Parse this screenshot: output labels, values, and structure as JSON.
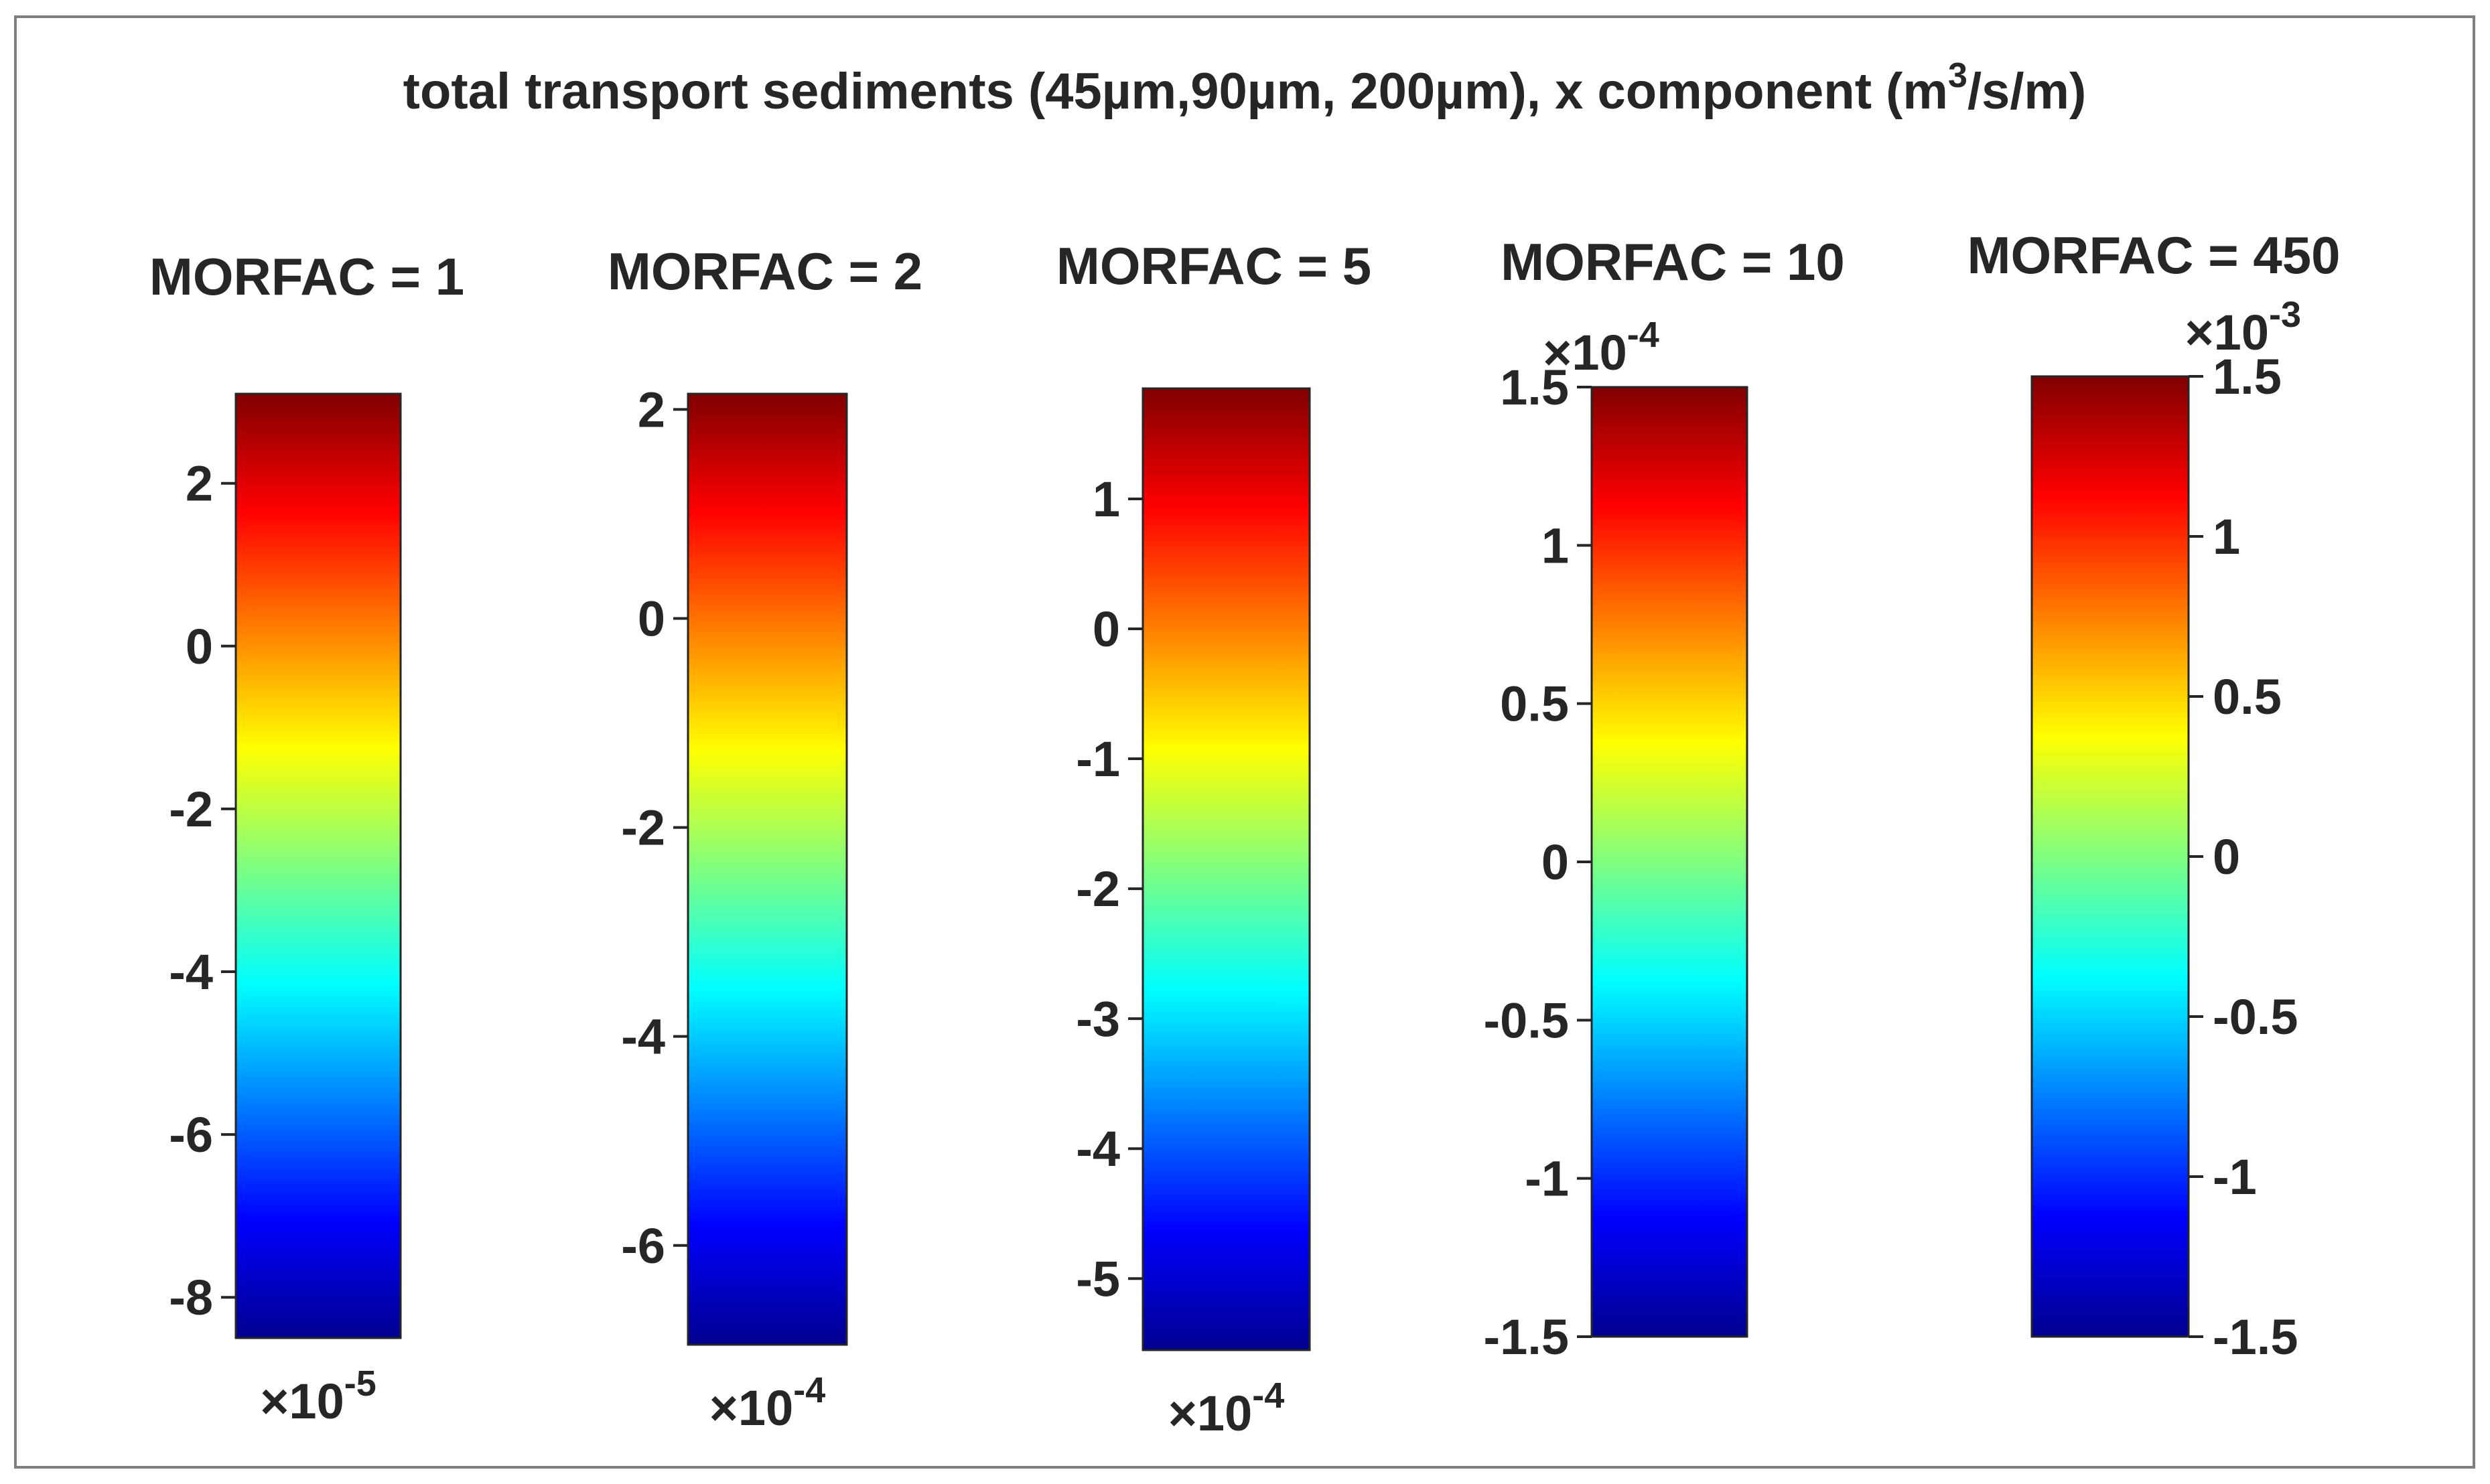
{
  "chart_data": {
    "type": "colorbar",
    "title": "total transport sediments (45µm,90µm, 200µm), x component (m",
    "title_superscript": "3",
    "title_suffix": "/s/m)",
    "colormap": "jet",
    "colorbars": [
      {
        "label": "MORFAC = 1",
        "range": [
          -8.5,
          3.1
        ],
        "ticks": [
          2,
          0,
          -2,
          -4,
          -6,
          -8
        ],
        "tick_labels": [
          "2",
          "0",
          "-2",
          "-4",
          "-6",
          "-8"
        ],
        "tick_side": "left",
        "exponent_base": "×10",
        "exponent": "-5",
        "exponent_position": "bottom"
      },
      {
        "label": "MORFAC = 2",
        "range": [
          -6.95,
          2.15
        ],
        "ticks": [
          2,
          0,
          -2,
          -4,
          -6
        ],
        "tick_labels": [
          "2",
          "0",
          "-2",
          "-4",
          "-6"
        ],
        "tick_side": "left",
        "exponent_base": "×10",
        "exponent": "-4",
        "exponent_position": "bottom"
      },
      {
        "label": "MORFAC = 5",
        "range": [
          -5.55,
          1.85
        ],
        "ticks": [
          1,
          0,
          -1,
          -2,
          -3,
          -4,
          -5
        ],
        "tick_labels": [
          "1",
          "0",
          "-1",
          "-2",
          "-3",
          "-4",
          "-5"
        ],
        "tick_side": "left",
        "exponent_base": "×10",
        "exponent": "-4",
        "exponent_position": "bottom"
      },
      {
        "label": "MORFAC = 10",
        "range": [
          -1.5,
          1.5
        ],
        "ticks": [
          1.5,
          1,
          0.5,
          0,
          -0.5,
          -1,
          -1.5
        ],
        "tick_labels": [
          "1.5",
          "1",
          "0.5",
          "0",
          "-0.5",
          "-1",
          "-1.5"
        ],
        "tick_side": "left",
        "exponent_base": "×10",
        "exponent": "-4",
        "exponent_position": "top"
      },
      {
        "label": "MORFAC = 450",
        "range": [
          -1.5,
          1.5
        ],
        "ticks": [
          1.5,
          1,
          0.5,
          0,
          -0.5,
          -1,
          -1.5
        ],
        "tick_labels": [
          "1.5",
          "1",
          "0.5",
          "0",
          "-0.5",
          "-1",
          "-1.5"
        ],
        "tick_side": "right",
        "exponent_base": "×10",
        "exponent": "-3",
        "exponent_position": "top"
      }
    ]
  }
}
